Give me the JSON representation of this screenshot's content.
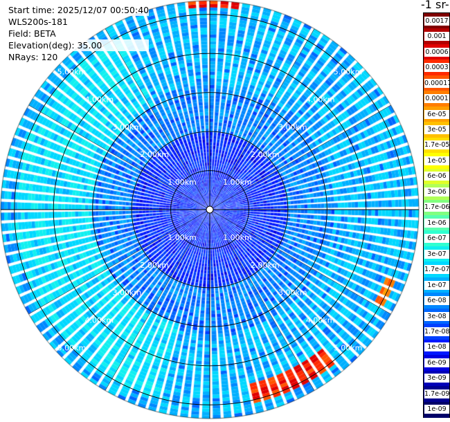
{
  "header": {
    "start_time": "Start time: 2025/12/07 00:50:40",
    "instrument": "WLS200s-181",
    "field": "Field: BETA",
    "elevation": "Elevation(deg): 35.00",
    "nrays": "NRays: 120"
  },
  "colorbar": {
    "unit_label": "-1 sr-",
    "labels": [
      "0.0017",
      "0.001",
      "0.0006",
      "0.0003",
      "0.00017",
      "0.0001",
      "6e-05",
      "3e-05",
      "1.7e-05",
      "1e-05",
      "6e-06",
      "3e-06",
      "1.7e-06",
      "1e-06",
      "6e-07",
      "3e-07",
      "1.7e-07",
      "1e-07",
      "6e-08",
      "3e-08",
      "1.7e-08",
      "1e-08",
      "6e-09",
      "3e-09",
      "1.7e-09",
      "1e-09"
    ],
    "colors": [
      "#800000",
      "#b30000",
      "#e00000",
      "#ff2a00",
      "#ff5500",
      "#ff7d00",
      "#ff9f00",
      "#ffc000",
      "#ffe000",
      "#ffff00",
      "#e0ff2a",
      "#b0ff58",
      "#80ff80",
      "#58ffb0",
      "#30ffd0",
      "#10f0f0",
      "#00d8ff",
      "#00b0ff",
      "#0088ff",
      "#0066ff",
      "#0040ff",
      "#0018ff",
      "#0000e0",
      "#0000b8",
      "#000090",
      "#000068"
    ]
  },
  "chart_data": {
    "type": "heatmap",
    "projection": "polar-ppi",
    "field": "BETA",
    "elevation_deg": 35.0,
    "n_rays": 120,
    "max_range_km": 5.0,
    "range_rings_km": [
      1.0,
      2.0,
      3.0,
      4.0,
      5.0
    ],
    "ring_labels": [
      "1.00km",
      "2.00km",
      "3.00km",
      "4.00km",
      "5.00km"
    ],
    "log_scale": true,
    "value_range": [
      1e-09,
      0.0017
    ],
    "features": [
      {
        "azimuth_deg": [
          0,
          360
        ],
        "range_km": [
          0,
          2.0
        ],
        "beta": 1e-08
      },
      {
        "azimuth_deg": [
          195,
          330
        ],
        "range_km": [
          3.0,
          5.0
        ],
        "beta": 2e-07
      },
      {
        "azimuth_deg": [
          140,
          165
        ],
        "range_km": [
          4.6,
          5.1
        ],
        "beta": 0.0003
      },
      {
        "azimuth_deg": [
          352,
          8
        ],
        "range_km": [
          5.2,
          5.4
        ],
        "beta": 0.0003
      },
      {
        "azimuth_deg": [
          110,
          118
        ],
        "range_km": [
          4.8,
          5.1
        ],
        "beta": 0.0001
      }
    ]
  }
}
